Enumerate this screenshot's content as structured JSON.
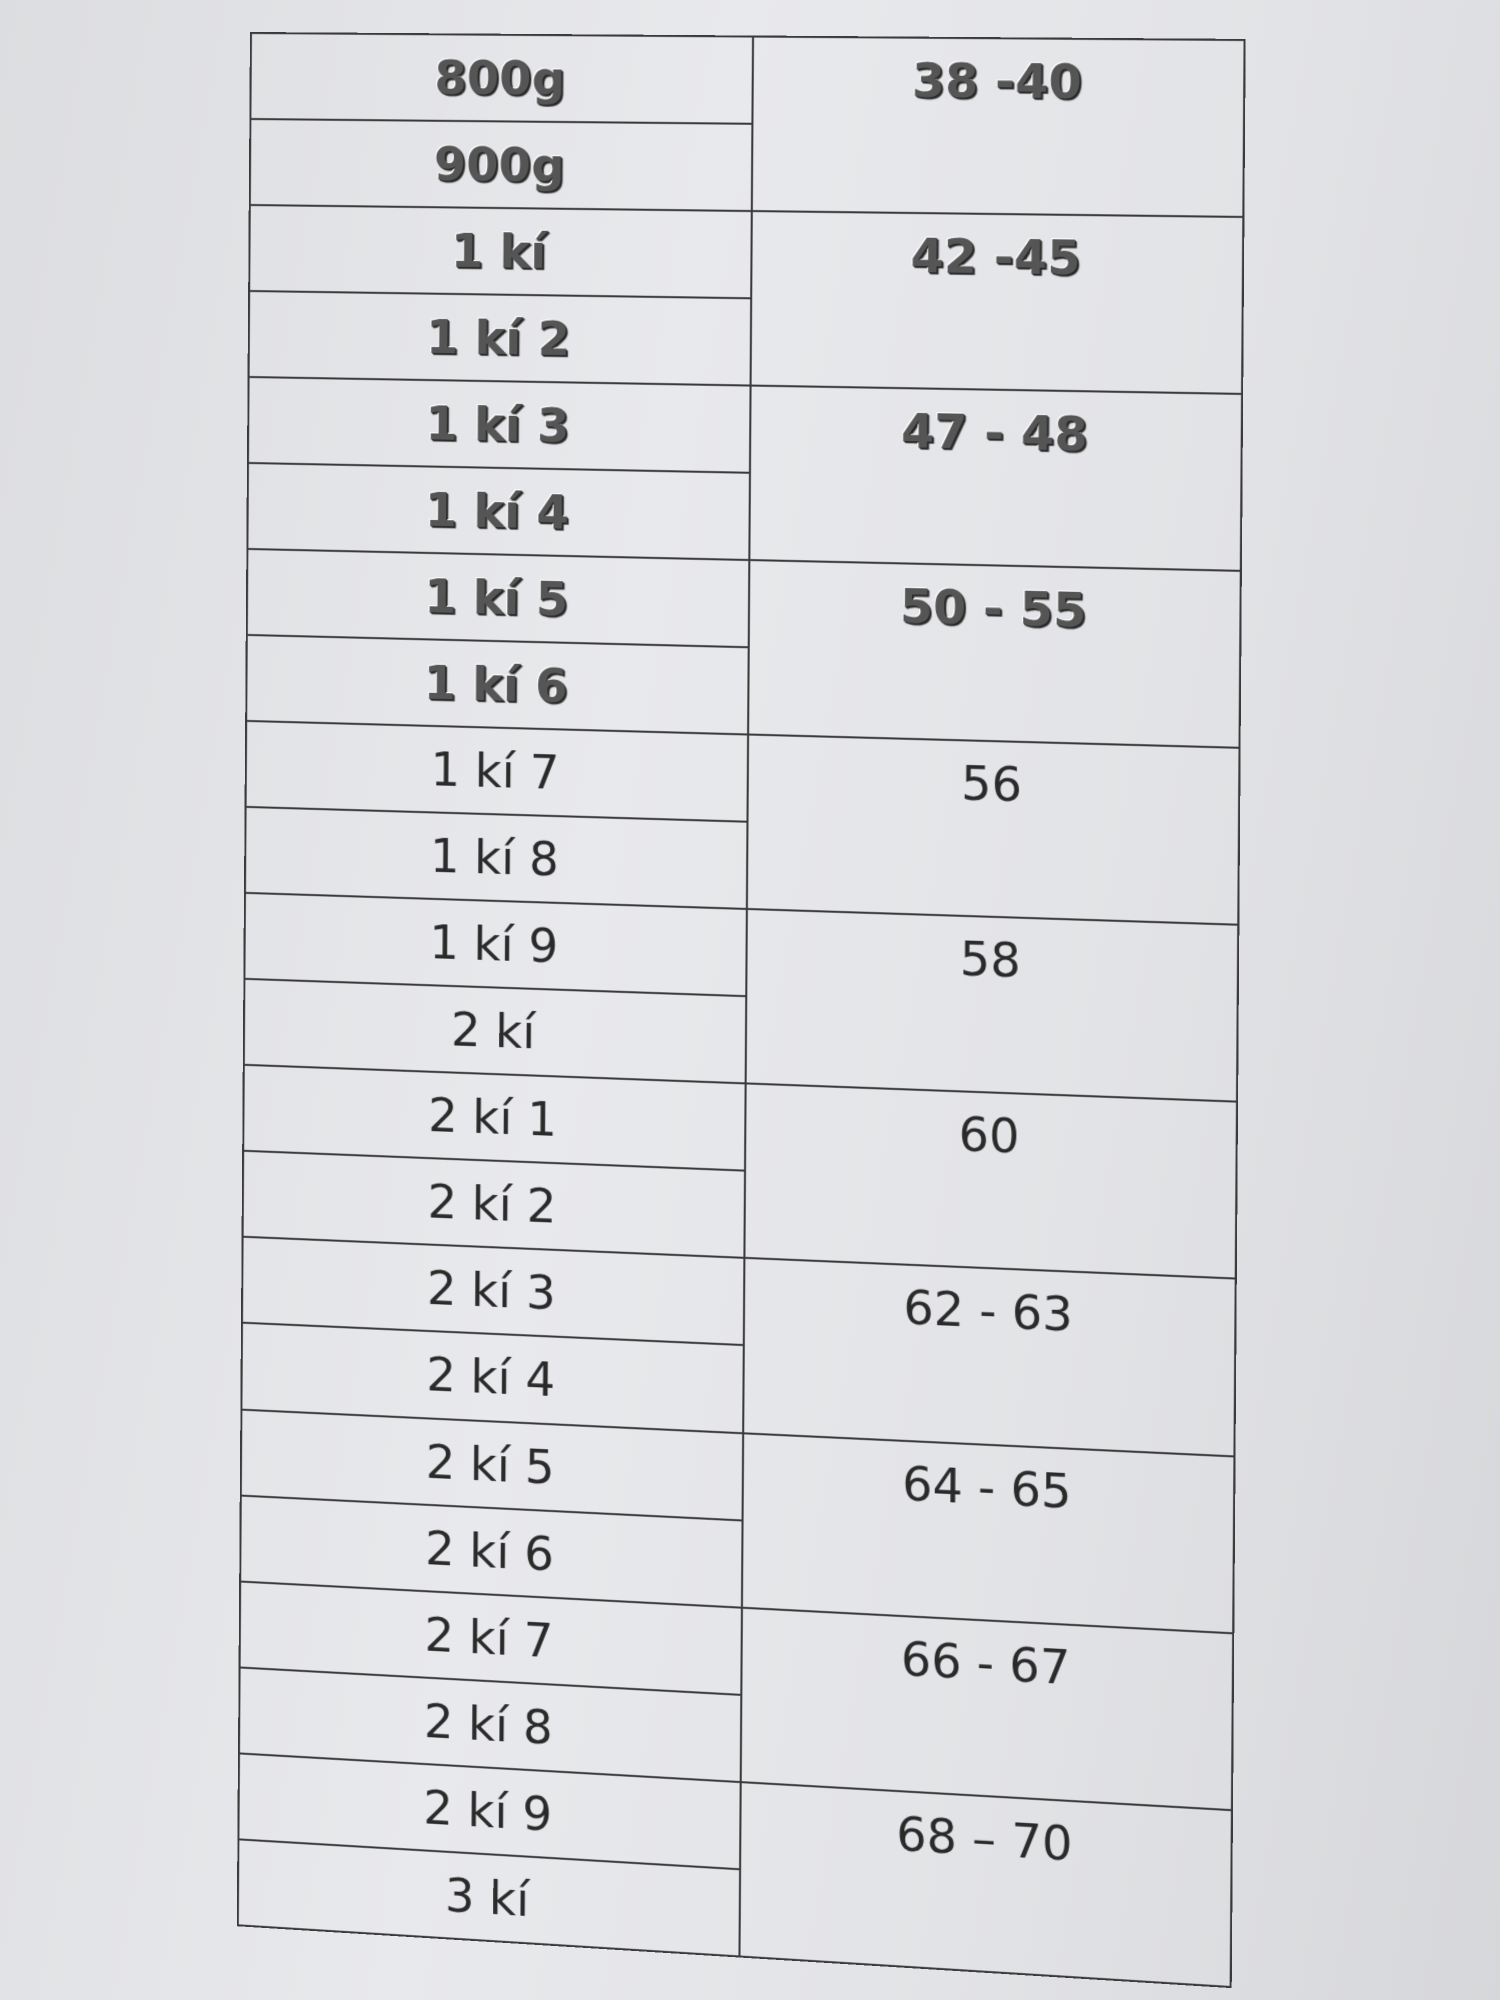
{
  "table": {
    "rows": [
      {
        "weight": "800g",
        "size": "38 -40"
      },
      {
        "weight": "900g"
      },
      {
        "weight": "1 kí",
        "size": "42 -45"
      },
      {
        "weight": "1 kí 2"
      },
      {
        "weight": "1 kí 3",
        "size": "47 - 48"
      },
      {
        "weight": "1 kí 4"
      },
      {
        "weight": "1 kí 5",
        "size": "50 - 55"
      },
      {
        "weight": "1 kí 6"
      },
      {
        "weight": "1 kí 7",
        "size": "56"
      },
      {
        "weight": "1 kí 8"
      },
      {
        "weight": "1 kí 9",
        "size": "58"
      },
      {
        "weight": "2 kí"
      },
      {
        "weight": "2 kí 1",
        "size": "60"
      },
      {
        "weight": "2 kí 2"
      },
      {
        "weight": "2 kí 3",
        "size": "62 - 63"
      },
      {
        "weight": "2 kí 4"
      },
      {
        "weight": "2 kí 5",
        "size": "64 - 65"
      },
      {
        "weight": "2 kí 6"
      },
      {
        "weight": "2 kí 7",
        "size": "66 - 67"
      },
      {
        "weight": "2 kí 8"
      },
      {
        "weight": "2 kí 9",
        "size": "68 – 70"
      },
      {
        "weight": "3 kí"
      }
    ]
  }
}
